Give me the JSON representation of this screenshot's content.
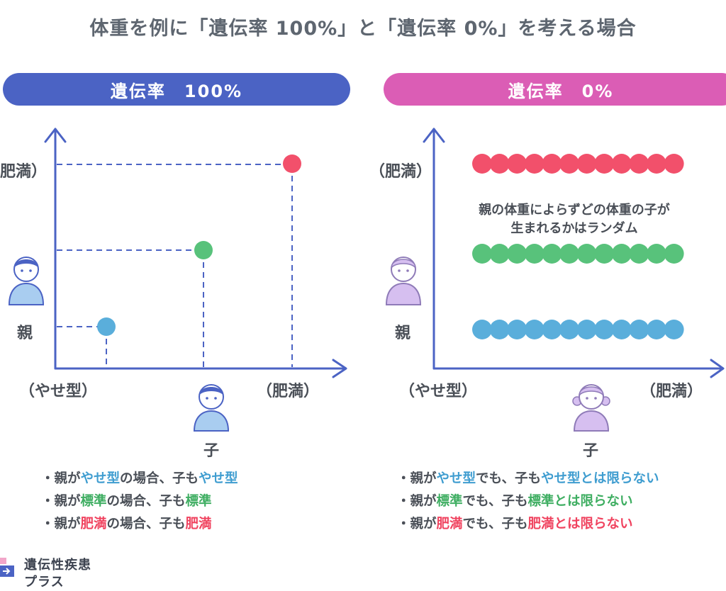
{
  "title": "体重を例に「遺伝率 100%」と「遺伝率 0%」を考える場合",
  "left_panel": {
    "header": "遺伝率　100%",
    "y_top_label": "肥満）",
    "y_axis_person": "親",
    "x_left_label": "（やせ型）",
    "x_right_label": "（肥満）",
    "x_axis_person": "子",
    "bullets": [
      {
        "parts": [
          {
            "t": "・親が",
            "c": ""
          },
          {
            "t": "やせ型",
            "c": "blue"
          },
          {
            "t": "の場合、子も",
            "c": ""
          },
          {
            "t": "やせ型",
            "c": "blue"
          }
        ]
      },
      {
        "parts": [
          {
            "t": "・親が",
            "c": ""
          },
          {
            "t": "標準",
            "c": "green"
          },
          {
            "t": "の場合、子も",
            "c": ""
          },
          {
            "t": "標準",
            "c": "green"
          }
        ]
      },
      {
        "parts": [
          {
            "t": "・親が",
            "c": ""
          },
          {
            "t": "肥満",
            "c": "red"
          },
          {
            "t": "の場合、子も",
            "c": ""
          },
          {
            "t": "肥満",
            "c": "red"
          }
        ]
      }
    ]
  },
  "right_panel": {
    "header": "遺伝率　0%",
    "y_top_label": "（肥満）",
    "y_axis_person": "親",
    "x_left_label": "（やせ型）",
    "x_right_label": "（肥満）",
    "x_axis_person": "子",
    "note_line1": "親の体重によらずどの体重の子が",
    "note_line2": "生まれるかはランダム",
    "bullets": [
      {
        "parts": [
          {
            "t": "・親が",
            "c": ""
          },
          {
            "t": "やせ型",
            "c": "blue"
          },
          {
            "t": "でも、子も",
            "c": ""
          },
          {
            "t": "やせ型とは限らない",
            "c": "blue"
          }
        ]
      },
      {
        "parts": [
          {
            "t": "・親が",
            "c": ""
          },
          {
            "t": "標準",
            "c": "green"
          },
          {
            "t": "でも、子も",
            "c": ""
          },
          {
            "t": "標準とは限らない",
            "c": "green"
          }
        ]
      },
      {
        "parts": [
          {
            "t": "・親が",
            "c": ""
          },
          {
            "t": "肥満",
            "c": "red"
          },
          {
            "t": "でも、子も",
            "c": ""
          },
          {
            "t": "肥満とは限らない",
            "c": "red"
          }
        ]
      }
    ]
  },
  "footer": {
    "line1": "遺伝性疾患",
    "line2": "プラス"
  },
  "colors": {
    "axis": "#4b63c4",
    "blue": "#5aaedb",
    "green": "#58c27b",
    "red": "#f2506b",
    "pill_left": "#4b63c4",
    "pill_right": "#db5db5",
    "person_blue": "#a9cdf0",
    "person_purple": "#d6bff0"
  }
}
